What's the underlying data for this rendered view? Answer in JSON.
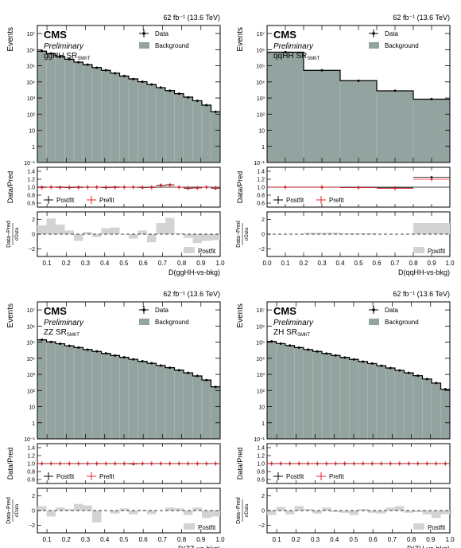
{
  "chart_data": [
    {
      "type": "bar",
      "lumi": "62 fb⁻¹ (13.6 TeV)",
      "experiment": "CMS",
      "status": "Preliminary",
      "region": "ggHH SR",
      "region_sub": "SMhT",
      "ylabel": "Events",
      "xlabel": "D(ggHH-vs-bkg)",
      "ratio_ylabel": "Data/Pred",
      "pull_ylabel_num": "Data−Pred",
      "pull_ylabel_den": "σData",
      "legend": {
        "data": "Data",
        "background": "Background",
        "postfit": "Postfit",
        "prefit": "Prefit"
      },
      "pull_legend": "Postfit",
      "y_log_range": [
        -1,
        7.5
      ],
      "yticks": [
        "10⁻¹",
        "1",
        "10",
        "10²",
        "10³",
        "10⁴",
        "10⁵",
        "10⁶",
        "10⁷"
      ],
      "x_range": [
        0.05,
        1.0
      ],
      "xticks": [
        "0.1",
        "0.2",
        "0.3",
        "0.4",
        "0.5",
        "0.6",
        "0.7",
        "0.8",
        "0.9",
        "1.0"
      ],
      "ratio_range": [
        0.5,
        1.5
      ],
      "ratio_ticks": [
        "0.6",
        "0.8",
        "1.0",
        "1.2",
        "1.4"
      ],
      "pull_range": [
        -3,
        3
      ],
      "pull_ticks": [
        "−2",
        "0",
        "2"
      ],
      "bin_edges": [
        0.05,
        0.0975,
        0.145,
        0.1925,
        0.24,
        0.2875,
        0.335,
        0.3825,
        0.43,
        0.4775,
        0.525,
        0.5725,
        0.62,
        0.6675,
        0.715,
        0.7625,
        0.81,
        0.8575,
        0.905,
        0.9525,
        1.0
      ],
      "background": [
        800000,
        560000,
        380000,
        255000,
        170000,
        115000,
        78000,
        52000,
        35000,
        23000,
        15500,
        10200,
        6800,
        4400,
        2900,
        1850,
        1150,
        680,
        360,
        140
      ],
      "data": [
        830000,
        585000,
        370000,
        260000,
        165000,
        118000,
        76000,
        53000,
        34500,
        23500,
        15000,
        10300,
        7000,
        4500,
        2850,
        1850,
        1100,
        670,
        360,
        140
      ],
      "ratio_postfit": [
        1.0,
        1.0,
        1.0,
        0.99,
        1.0,
        1.0,
        1.0,
        0.99,
        1.0,
        1.0,
        1.0,
        0.99,
        1.0,
        1.05,
        1.06,
        1.0,
        0.97,
        0.98,
        1.0,
        0.97
      ],
      "ratio_prefit": [
        0.99,
        1.0,
        0.99,
        1.0,
        0.99,
        1.0,
        1.0,
        1.0,
        0.99,
        1.0,
        1.0,
        1.0,
        0.99,
        1.04,
        1.05,
        1.0,
        0.98,
        0.98,
        1.0,
        0.98
      ],
      "pull": [
        1.2,
        2.1,
        1.3,
        0.5,
        -0.9,
        0.3,
        -0.4,
        0.8,
        0.9,
        0.0,
        -0.6,
        0.5,
        -1.1,
        1.5,
        2.2,
        0.1,
        -0.5,
        -1.2,
        -0.9,
        -0.8
      ]
    },
    {
      "type": "bar",
      "lumi": "62 fb⁻¹ (13.6 TeV)",
      "experiment": "CMS",
      "status": "Preliminary",
      "region": "qqHH SR",
      "region_sub": "SMhT",
      "ylabel": "Events",
      "xlabel": "D(qqHH-vs-bkg)",
      "ratio_ylabel": "Data/Pred",
      "pull_ylabel_num": "Data−Pred",
      "pull_ylabel_den": "σData",
      "legend": {
        "data": "Data",
        "background": "Background",
        "postfit": "Postfit",
        "prefit": "Prefit"
      },
      "pull_legend": "Postfit",
      "y_log_range": [
        -1,
        7.5
      ],
      "yticks": [
        "10⁻¹",
        "1",
        "10",
        "10²",
        "10³",
        "10⁴",
        "10⁵",
        "10⁶",
        "10⁷"
      ],
      "x_range": [
        0.0,
        1.0
      ],
      "xticks": [
        "0.0",
        "0.1",
        "0.2",
        "0.3",
        "0.4",
        "0.5",
        "0.6",
        "0.7",
        "0.8",
        "0.9",
        "1.0"
      ],
      "ratio_range": [
        0.5,
        1.5
      ],
      "ratio_ticks": [
        "0.6",
        "0.8",
        "1.0",
        "1.2",
        "1.4"
      ],
      "pull_range": [
        -3,
        3
      ],
      "pull_ticks": [
        "−2",
        "0",
        "2"
      ],
      "bin_edges": [
        0.0,
        0.2,
        0.4,
        0.6,
        0.8,
        1.0
      ],
      "background": [
        700000,
        52000,
        12000,
        2800,
        850
      ],
      "data": [
        705000,
        52500,
        11800,
        2850,
        860
      ],
      "ratio_postfit": [
        1.0,
        1.0,
        0.99,
        0.98,
        1.25
      ],
      "ratio_prefit": [
        1.0,
        1.0,
        0.99,
        0.97,
        1.2
      ],
      "pull": [
        0.0,
        0.2,
        0.1,
        0.0,
        1.5
      ]
    },
    {
      "type": "bar",
      "lumi": "62 fb⁻¹ (13.6 TeV)",
      "experiment": "CMS",
      "status": "Preliminary",
      "region": "ZZ SR",
      "region_sub": "SMhT",
      "ylabel": "Events",
      "xlabel": "D(ZZ-vs-bkg)",
      "ratio_ylabel": "Data/Pred",
      "pull_ylabel_num": "Data−Pred",
      "pull_ylabel_den": "σData",
      "legend": {
        "data": "Data",
        "background": "Background",
        "postfit": "Postfit",
        "prefit": "Prefit"
      },
      "pull_legend": "Postfit",
      "y_log_range": [
        -1,
        7.5
      ],
      "yticks": [
        "10⁻¹",
        "1",
        "10",
        "10²",
        "10³",
        "10⁴",
        "10⁵",
        "10⁶",
        "10⁷"
      ],
      "x_range": [
        0.05,
        1.0
      ],
      "xticks": [
        "0.1",
        "0.2",
        "0.3",
        "0.4",
        "0.5",
        "0.6",
        "0.7",
        "0.8",
        "0.9",
        "1.0"
      ],
      "ratio_range": [
        0.5,
        1.5
      ],
      "ratio_ticks": [
        "0.6",
        "0.8",
        "1.0",
        "1.2",
        "1.4"
      ],
      "pull_range": [
        -3,
        3
      ],
      "pull_ticks": [
        "−2",
        "0",
        "2"
      ],
      "bin_edges": [
        0.05,
        0.0975,
        0.145,
        0.1925,
        0.24,
        0.2875,
        0.335,
        0.3825,
        0.43,
        0.4775,
        0.525,
        0.5725,
        0.62,
        0.6675,
        0.715,
        0.7625,
        0.81,
        0.8575,
        0.905,
        0.9525,
        1.0
      ],
      "background": [
        140000,
        105000,
        80000,
        60000,
        46000,
        35000,
        26500,
        20000,
        15000,
        11500,
        8700,
        6500,
        4900,
        3600,
        2600,
        1850,
        1250,
        800,
        450,
        170
      ],
      "data": [
        142000,
        104000,
        81000,
        59500,
        46500,
        34500,
        27000,
        20300,
        14800,
        11600,
        8600,
        6550,
        4950,
        3550,
        2620,
        1830,
        1240,
        810,
        440,
        168
      ],
      "ratio_postfit": [
        1.0,
        1.0,
        1.0,
        1.0,
        1.0,
        1.0,
        1.0,
        1.0,
        1.0,
        1.0,
        0.99,
        1.0,
        1.0,
        1.0,
        1.0,
        1.0,
        1.0,
        1.0,
        1.0,
        1.0
      ],
      "ratio_prefit": [
        1.0,
        1.0,
        1.0,
        1.0,
        1.0,
        1.0,
        1.0,
        1.0,
        1.0,
        1.0,
        1.0,
        1.0,
        1.0,
        1.0,
        1.0,
        1.0,
        1.0,
        1.0,
        1.0,
        1.0
      ],
      "pull": [
        0.6,
        -0.8,
        0.4,
        0.2,
        0.9,
        0.7,
        -1.6,
        0.0,
        -0.4,
        0.3,
        -0.5,
        0.1,
        -0.5,
        0.0,
        0.4,
        0.3,
        -0.6,
        0.4,
        -1.0,
        -0.8
      ]
    },
    {
      "type": "bar",
      "lumi": "62 fb⁻¹ (13.6 TeV)",
      "experiment": "CMS",
      "status": "Preliminary",
      "region": "ZH SR",
      "region_sub": "SMhT",
      "ylabel": "Events",
      "xlabel": "D(ZH-vs-bkg)",
      "ratio_ylabel": "Data/Pred",
      "pull_ylabel_num": "Data−Pred",
      "pull_ylabel_den": "σData",
      "legend": {
        "data": "Data",
        "background": "Background",
        "postfit": "Postfit",
        "prefit": "Prefit"
      },
      "pull_legend": "Postfit",
      "y_log_range": [
        -1,
        7.5
      ],
      "yticks": [
        "10⁻¹",
        "1",
        "10",
        "10²",
        "10³",
        "10⁴",
        "10⁵",
        "10⁶",
        "10⁷"
      ],
      "x_range": [
        0.05,
        1.0
      ],
      "xticks": [
        "0.1",
        "0.2",
        "0.3",
        "0.4",
        "0.5",
        "0.6",
        "0.7",
        "0.8",
        "0.9",
        "1.0"
      ],
      "ratio_range": [
        0.5,
        1.5
      ],
      "ratio_ticks": [
        "0.6",
        "0.8",
        "1.0",
        "1.2",
        "1.4"
      ],
      "pull_range": [
        -3,
        3
      ],
      "pull_ticks": [
        "−2",
        "0",
        "2"
      ],
      "bin_edges": [
        0.05,
        0.0975,
        0.145,
        0.1925,
        0.24,
        0.2875,
        0.335,
        0.3825,
        0.43,
        0.4775,
        0.525,
        0.5725,
        0.62,
        0.6675,
        0.715,
        0.7625,
        0.81,
        0.8575,
        0.905,
        0.9525,
        1.0
      ],
      "background": [
        110000,
        82000,
        62000,
        46000,
        35000,
        26500,
        20000,
        15000,
        11300,
        8500,
        6300,
        4700,
        3450,
        2500,
        1780,
        1250,
        830,
        520,
        290,
        120
      ],
      "data": [
        111000,
        81500,
        62500,
        46200,
        34800,
        26700,
        19800,
        15100,
        11200,
        8550,
        6250,
        4720,
        3460,
        2490,
        1790,
        1240,
        835,
        518,
        292,
        121
      ],
      "ratio_postfit": [
        1.0,
        1.0,
        1.0,
        1.0,
        1.0,
        1.0,
        1.0,
        1.0,
        1.0,
        1.0,
        1.0,
        1.0,
        1.0,
        1.0,
        1.0,
        1.0,
        1.0,
        1.0,
        1.0,
        1.0
      ],
      "ratio_prefit": [
        1.0,
        1.0,
        1.0,
        1.0,
        1.0,
        1.0,
        1.0,
        1.0,
        1.0,
        1.0,
        1.0,
        1.0,
        1.0,
        1.0,
        1.0,
        1.0,
        1.0,
        1.0,
        1.0,
        1.0
      ],
      "pull": [
        -0.6,
        0.5,
        -0.5,
        0.6,
        0.2,
        -0.4,
        0.4,
        -0.2,
        -0.3,
        -0.6,
        0.2,
        -0.3,
        -0.4,
        0.4,
        0.6,
        -0.3,
        -0.2,
        -0.5,
        -1.0,
        -0.5
      ]
    }
  ]
}
